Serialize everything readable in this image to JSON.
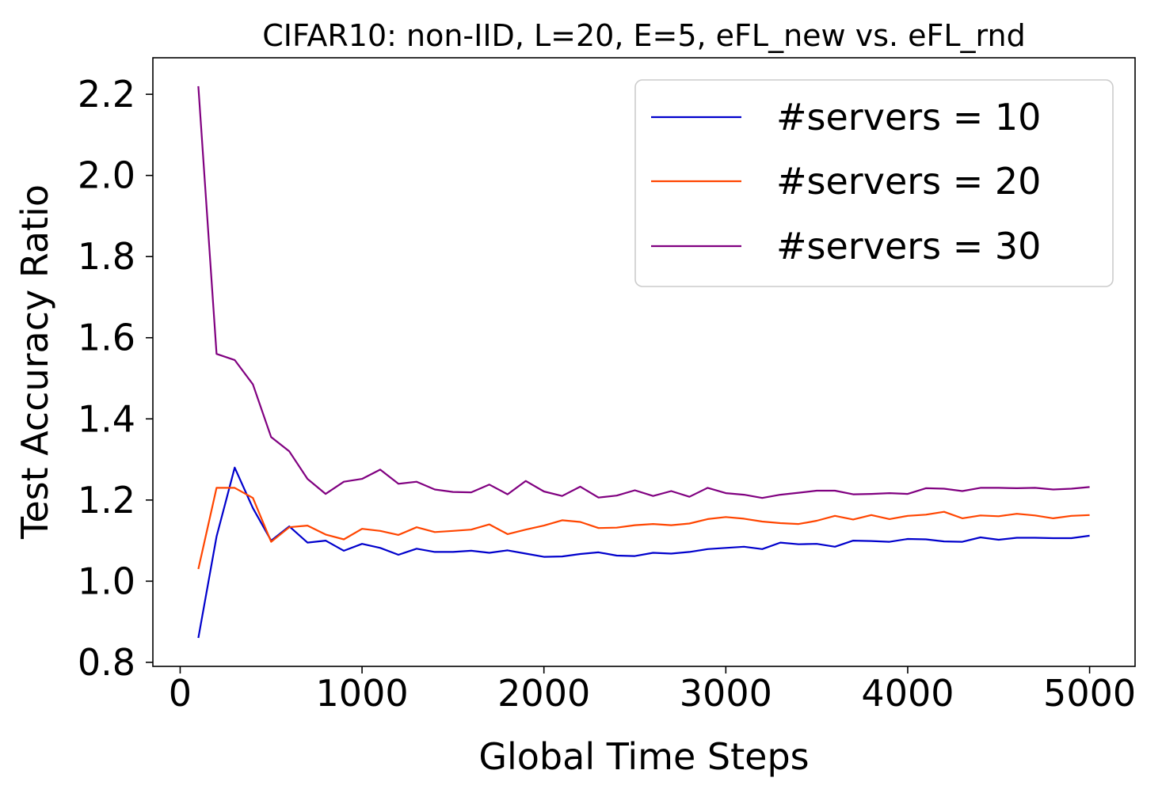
{
  "chart_data": {
    "type": "line",
    "title": "CIFAR10: non-IID, L=20, E=5, eFL_new vs. eFL_rnd",
    "xlabel": "Global Time Steps",
    "ylabel": "Test Accuracy Ratio",
    "xlim": [
      -150,
      5250
    ],
    "ylim": [
      0.79,
      2.29
    ],
    "xticks": [
      0,
      1000,
      2000,
      3000,
      4000,
      5000
    ],
    "yticks": [
      0.8,
      1.0,
      1.2,
      1.4,
      1.6,
      1.8,
      2.0,
      2.2
    ],
    "xtick_labels": [
      "0",
      "1000",
      "2000",
      "3000",
      "4000",
      "5000"
    ],
    "ytick_labels": [
      "0.8",
      "1.0",
      "1.2",
      "1.4",
      "1.6",
      "1.8",
      "2.0",
      "2.2"
    ],
    "legend_position": "top-right",
    "x": [
      100,
      200,
      300,
      400,
      500,
      600,
      700,
      800,
      900,
      1000,
      1100,
      1200,
      1300,
      1400,
      1500,
      1600,
      1700,
      1800,
      1900,
      2000,
      2100,
      2200,
      2300,
      2400,
      2500,
      2600,
      2700,
      2800,
      2900,
      3000,
      3100,
      3200,
      3300,
      3400,
      3500,
      3600,
      3700,
      3800,
      3900,
      4000,
      4100,
      4200,
      4300,
      4400,
      4500,
      4600,
      4700,
      4800,
      4900,
      5000
    ],
    "series": [
      {
        "name": "#servers = 10",
        "color": "#0000cc",
        "values": [
          0.86,
          1.11,
          1.28,
          1.18,
          1.1,
          1.135,
          1.095,
          1.1,
          1.075,
          1.092,
          1.082,
          1.065,
          1.08,
          1.072,
          1.072,
          1.075,
          1.07,
          1.076,
          1.068,
          1.06,
          1.061,
          1.067,
          1.071,
          1.063,
          1.062,
          1.07,
          1.068,
          1.072,
          1.079,
          1.082,
          1.085,
          1.079,
          1.095,
          1.091,
          1.092,
          1.085,
          1.1,
          1.099,
          1.097,
          1.104,
          1.103,
          1.098,
          1.097,
          1.108,
          1.102,
          1.107,
          1.107,
          1.106,
          1.106,
          1.112
        ]
      },
      {
        "name": "#servers = 20",
        "color": "#ff4500",
        "values": [
          1.03,
          1.23,
          1.23,
          1.205,
          1.097,
          1.133,
          1.137,
          1.115,
          1.103,
          1.129,
          1.124,
          1.114,
          1.133,
          1.121,
          1.124,
          1.127,
          1.14,
          1.116,
          1.127,
          1.137,
          1.15,
          1.146,
          1.131,
          1.132,
          1.138,
          1.141,
          1.138,
          1.142,
          1.153,
          1.158,
          1.154,
          1.147,
          1.143,
          1.141,
          1.149,
          1.161,
          1.152,
          1.163,
          1.153,
          1.161,
          1.164,
          1.171,
          1.155,
          1.162,
          1.16,
          1.166,
          1.162,
          1.155,
          1.161,
          1.163
        ]
      },
      {
        "name": "#servers = 30",
        "color": "#800080",
        "values": [
          2.22,
          1.56,
          1.545,
          1.485,
          1.355,
          1.32,
          1.252,
          1.215,
          1.245,
          1.252,
          1.275,
          1.24,
          1.245,
          1.226,
          1.22,
          1.219,
          1.238,
          1.214,
          1.247,
          1.221,
          1.21,
          1.233,
          1.206,
          1.211,
          1.224,
          1.21,
          1.222,
          1.208,
          1.23,
          1.217,
          1.213,
          1.205,
          1.213,
          1.218,
          1.223,
          1.223,
          1.214,
          1.215,
          1.217,
          1.215,
          1.229,
          1.228,
          1.222,
          1.23,
          1.23,
          1.229,
          1.23,
          1.226,
          1.228,
          1.232
        ]
      }
    ]
  }
}
